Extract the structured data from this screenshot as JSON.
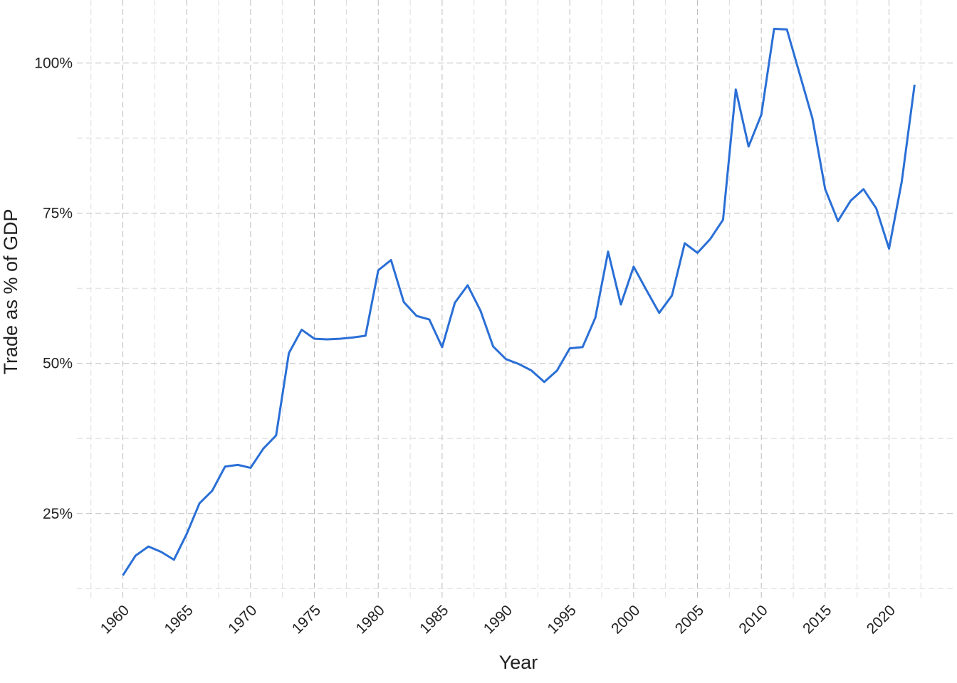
{
  "chart_data": {
    "type": "line",
    "x_label": "Year",
    "y_label": "Trade as % of GDP",
    "x": [
      1960,
      1961,
      1962,
      1963,
      1964,
      1965,
      1966,
      1967,
      1968,
      1969,
      1970,
      1971,
      1972,
      1973,
      1974,
      1975,
      1976,
      1977,
      1978,
      1979,
      1980,
      1981,
      1982,
      1983,
      1984,
      1985,
      1986,
      1987,
      1988,
      1989,
      1990,
      1991,
      1992,
      1993,
      1994,
      1995,
      1996,
      1997,
      1998,
      1999,
      2000,
      2001,
      2002,
      2003,
      2004,
      2005,
      2006,
      2007,
      2008,
      2009,
      2010,
      2011,
      2012,
      2013,
      2014,
      2015,
      2016,
      2017,
      2018,
      2019,
      2020,
      2021,
      2022
    ],
    "values": [
      14.7,
      18.0,
      19.5,
      18.6,
      17.3,
      21.6,
      26.7,
      28.8,
      32.8,
      33.1,
      32.6,
      35.8,
      38.0,
      51.7,
      55.6,
      54.1,
      54.0,
      54.1,
      54.3,
      54.6,
      65.5,
      67.2,
      60.2,
      57.9,
      57.3,
      52.7,
      60.1,
      63.0,
      58.8,
      52.8,
      50.7,
      49.9,
      48.8,
      46.9,
      48.8,
      52.5,
      52.7,
      57.6,
      68.6,
      59.8,
      66.1,
      62.2,
      58.4,
      61.3,
      70.0,
      68.4,
      70.7,
      73.9,
      95.6,
      86.1,
      91.4,
      105.7,
      105.6,
      98.2,
      90.8,
      79.0,
      73.7,
      77.1,
      79.0,
      75.8,
      69.1,
      80.3,
      96.4
    ],
    "color": "#2a6fd6",
    "xlim": [
      1956.4,
      2025.1
    ],
    "ylim": [
      10.4,
      110.5
    ],
    "xticks": [
      1960,
      1965,
      1970,
      1975,
      1980,
      1985,
      1990,
      1995,
      2000,
      2005,
      2010,
      2015,
      2020
    ],
    "xminor_ticks": [
      1957.5,
      1962.5,
      1967.5,
      1972.5,
      1977.5,
      1982.5,
      1987.5,
      1992.5,
      1997.5,
      2002.5,
      2007.5,
      2012.5,
      2017.5,
      2022.5
    ],
    "yticks": [
      {
        "value": 25,
        "label": "25%"
      },
      {
        "value": 50,
        "label": "50%"
      },
      {
        "value": 75,
        "label": "75%"
      },
      {
        "value": 100,
        "label": "100%"
      }
    ],
    "yminor_ticks": [
      12.5,
      37.5,
      62.5,
      87.5
    ],
    "grid": true
  }
}
